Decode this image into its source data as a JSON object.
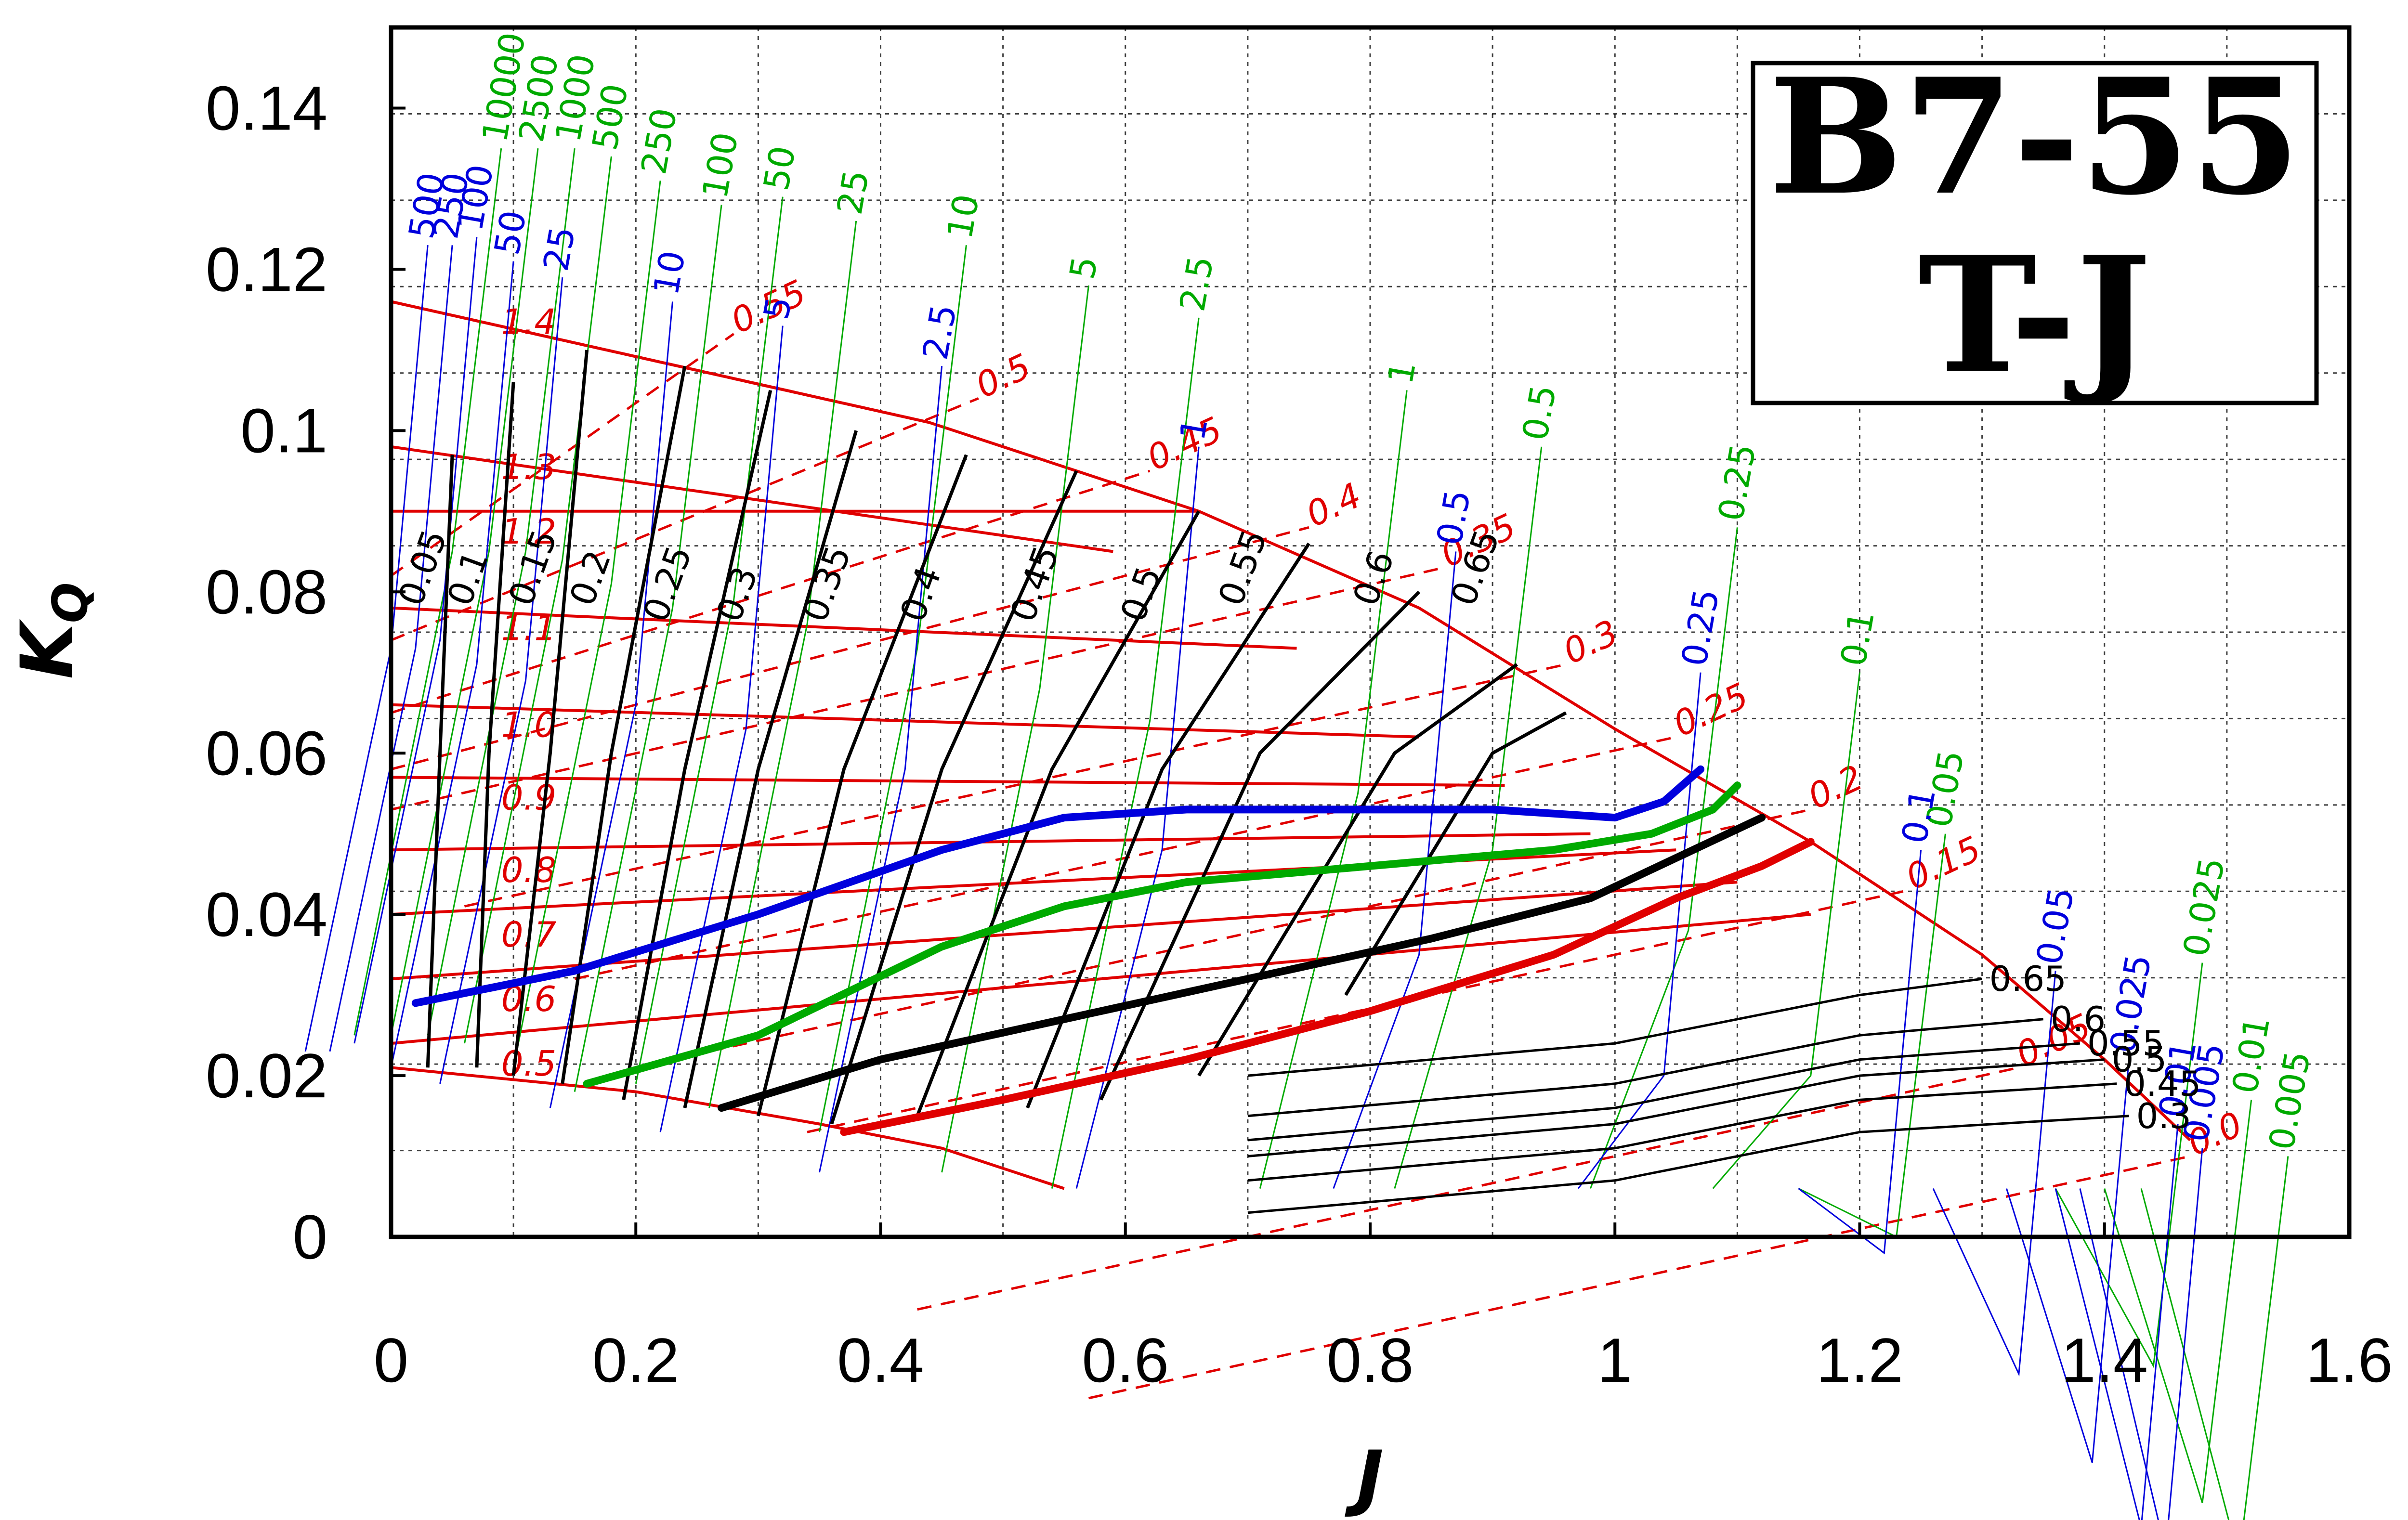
{
  "chart_data": {
    "type": "line",
    "title_lines": [
      "B7-55",
      "T-J"
    ],
    "xlabel": "J",
    "ylabel_main": "K",
    "ylabel_sub": "Q",
    "xlim": [
      0,
      1.6
    ],
    "ylim": [
      0,
      0.15
    ],
    "xticks": [
      "0",
      "0.2",
      "0.4",
      "0.6",
      "0.8",
      "1",
      "1.2",
      "1.4",
      "1.6"
    ],
    "yticks": [
      "0",
      "0.02",
      "0.04",
      "0.06",
      "0.08",
      "0.1",
      "0.12",
      "0.14"
    ],
    "grid": true,
    "colors": {
      "pitch": "#e00000",
      "efficiency": "#000000",
      "green": "#00aa00",
      "blue": "#0000dd"
    },
    "pitch_lines": [
      {
        "label": "1.4",
        "start": [
          0.0,
          0.116
        ],
        "end": [
          0.44,
          0.101
        ]
      },
      {
        "label": "1.3",
        "start": [
          0.0,
          0.098
        ],
        "end": [
          0.59,
          0.085
        ]
      },
      {
        "label": "1.2",
        "start": [
          0.0,
          0.09
        ],
        "end": [
          0.66,
          0.09
        ]
      },
      {
        "label": "1.1",
        "start": [
          0.0,
          0.078
        ],
        "end": [
          0.74,
          0.073
        ]
      },
      {
        "label": "1.0",
        "start": [
          0.0,
          0.066
        ],
        "end": [
          0.84,
          0.062
        ]
      },
      {
        "label": "0.9",
        "start": [
          0.0,
          0.057
        ],
        "end": [
          0.91,
          0.056
        ]
      },
      {
        "label": "0.8",
        "start": [
          0.0,
          0.048
        ],
        "end": [
          0.98,
          0.05
        ]
      },
      {
        "label": "0.7",
        "start": [
          0.0,
          0.04
        ],
        "end": [
          1.05,
          0.048
        ]
      },
      {
        "label": "0.6",
        "start": [
          0.0,
          0.032
        ],
        "end": [
          1.1,
          0.044
        ]
      },
      {
        "label": "0.5",
        "start": [
          0.0,
          0.024
        ],
        "end": [
          1.16,
          0.04
        ]
      }
    ],
    "pitch_dashed_labels": [
      {
        "label": "0.55",
        "at": [
          0.28,
          0.112
        ]
      },
      {
        "label": "0.5",
        "at": [
          0.48,
          0.104
        ]
      },
      {
        "label": "0.45",
        "at": [
          0.62,
          0.095
        ]
      },
      {
        "label": "0.4",
        "at": [
          0.75,
          0.088
        ]
      },
      {
        "label": "0.35",
        "at": [
          0.86,
          0.083
        ]
      },
      {
        "label": "0.3",
        "at": [
          0.96,
          0.071
        ]
      },
      {
        "label": "0.25",
        "at": [
          1.05,
          0.062
        ]
      },
      {
        "label": "0.2",
        "at": [
          1.16,
          0.053
        ]
      },
      {
        "label": "0.15",
        "at": [
          1.24,
          0.043
        ]
      },
      {
        "label": "0.05",
        "at": [
          1.33,
          0.021
        ]
      },
      {
        "label": "0.0",
        "at": [
          1.47,
          0.01
        ]
      }
    ],
    "efficiency_curves": [
      {
        "label": "0.05",
        "points": [
          [
            0.03,
            0.021
          ],
          [
            0.04,
            0.06
          ],
          [
            0.05,
            0.097
          ]
        ]
      },
      {
        "label": "0.1",
        "points": [
          [
            0.07,
            0.021
          ],
          [
            0.08,
            0.06
          ],
          [
            0.1,
            0.106
          ]
        ]
      },
      {
        "label": "0.15",
        "points": [
          [
            0.1,
            0.02
          ],
          [
            0.13,
            0.06
          ],
          [
            0.16,
            0.11
          ]
        ]
      },
      {
        "label": "0.2",
        "points": [
          [
            0.14,
            0.019
          ],
          [
            0.18,
            0.06
          ],
          [
            0.24,
            0.108
          ]
        ]
      },
      {
        "label": "0.25",
        "points": [
          [
            0.19,
            0.017
          ],
          [
            0.24,
            0.058
          ],
          [
            0.31,
            0.105
          ]
        ]
      },
      {
        "label": "0.3",
        "points": [
          [
            0.24,
            0.016
          ],
          [
            0.3,
            0.058
          ],
          [
            0.38,
            0.1
          ]
        ]
      },
      {
        "label": "0.35",
        "points": [
          [
            0.3,
            0.015
          ],
          [
            0.37,
            0.058
          ],
          [
            0.47,
            0.097
          ]
        ]
      },
      {
        "label": "0.4",
        "points": [
          [
            0.36,
            0.014
          ],
          [
            0.45,
            0.058
          ],
          [
            0.56,
            0.095
          ]
        ]
      },
      {
        "label": "0.45",
        "points": [
          [
            0.43,
            0.015
          ],
          [
            0.54,
            0.058
          ],
          [
            0.66,
            0.09
          ]
        ]
      },
      {
        "label": "0.5",
        "points": [
          [
            0.52,
            0.016
          ],
          [
            0.63,
            0.058
          ],
          [
            0.75,
            0.086
          ]
        ]
      },
      {
        "label": "0.55",
        "points": [
          [
            0.58,
            0.017
          ],
          [
            0.71,
            0.06
          ],
          [
            0.84,
            0.08
          ]
        ]
      },
      {
        "label": "0.6",
        "points": [
          [
            0.66,
            0.02
          ],
          [
            0.82,
            0.06
          ],
          [
            0.92,
            0.071
          ]
        ]
      },
      {
        "label": "0.65",
        "points": [
          [
            0.78,
            0.03
          ],
          [
            0.9,
            0.06
          ],
          [
            0.96,
            0.065
          ]
        ]
      }
    ],
    "efficiency_right_labels": [
      {
        "label": "0.65",
        "at": [
          1.3,
          0.032
        ]
      },
      {
        "label": "0.6",
        "at": [
          1.35,
          0.027
        ]
      },
      {
        "label": "0.55",
        "at": [
          1.38,
          0.024
        ]
      },
      {
        "label": "0.5",
        "at": [
          1.4,
          0.022
        ]
      },
      {
        "label": "0.45",
        "at": [
          1.41,
          0.019
        ]
      },
      {
        "label": "0.3",
        "at": [
          1.42,
          0.015
        ]
      }
    ],
    "green_curves": [
      {
        "label": "10000",
        "top": [
          0.09,
          0.135
        ]
      },
      {
        "label": "2500",
        "top": [
          0.12,
          0.135
        ]
      },
      {
        "label": "1000",
        "top": [
          0.15,
          0.135
        ]
      },
      {
        "label": "500",
        "top": [
          0.18,
          0.134
        ]
      },
      {
        "label": "250",
        "top": [
          0.22,
          0.131
        ]
      },
      {
        "label": "100",
        "top": [
          0.27,
          0.128
        ]
      },
      {
        "label": "50",
        "top": [
          0.32,
          0.129
        ]
      },
      {
        "label": "25",
        "top": [
          0.38,
          0.126
        ]
      },
      {
        "label": "10",
        "top": [
          0.47,
          0.123
        ]
      },
      {
        "label": "5",
        "top": [
          0.57,
          0.118
        ]
      },
      {
        "label": "2.5",
        "top": [
          0.66,
          0.114
        ]
      },
      {
        "label": "1",
        "top": [
          0.83,
          0.105
        ]
      },
      {
        "label": "0.5",
        "top": [
          0.94,
          0.098
        ]
      },
      {
        "label": "0.25",
        "top": [
          1.1,
          0.088
        ]
      },
      {
        "label": "0.1",
        "top": [
          1.2,
          0.07
        ]
      },
      {
        "label": "0.05",
        "top": [
          1.27,
          0.05
        ]
      },
      {
        "label": "0.025",
        "top": [
          1.48,
          0.034
        ]
      },
      {
        "label": "0.01",
        "top": [
          1.52,
          0.017
        ]
      },
      {
        "label": "0.005",
        "top": [
          1.55,
          0.01
        ]
      }
    ],
    "blue_curves": [
      {
        "label": "500",
        "top": [
          0.03,
          0.123
        ]
      },
      {
        "label": "250",
        "top": [
          0.05,
          0.123
        ]
      },
      {
        "label": "100",
        "top": [
          0.07,
          0.124
        ]
      },
      {
        "label": "50",
        "top": [
          0.1,
          0.121
        ]
      },
      {
        "label": "25",
        "top": [
          0.14,
          0.119
        ]
      },
      {
        "label": "10",
        "top": [
          0.23,
          0.116
        ]
      },
      {
        "label": "5",
        "top": [
          0.32,
          0.113
        ]
      },
      {
        "label": "2.5",
        "top": [
          0.45,
          0.108
        ]
      },
      {
        "label": "1",
        "top": [
          0.66,
          0.098
        ]
      },
      {
        "label": "0.5",
        "top": [
          0.87,
          0.085
        ]
      },
      {
        "label": "0.25",
        "top": [
          1.07,
          0.07
        ]
      },
      {
        "label": "0.1",
        "top": [
          1.25,
          0.048
        ]
      },
      {
        "label": "0.05",
        "top": [
          1.36,
          0.033
        ]
      },
      {
        "label": "0.025",
        "top": [
          1.42,
          0.022
        ]
      },
      {
        "label": "0.01",
        "top": [
          1.46,
          0.014
        ]
      },
      {
        "label": "0.005",
        "top": [
          1.48,
          0.011
        ]
      }
    ],
    "thick_curves": [
      {
        "color": "blue",
        "points": [
          [
            0.02,
            0.029
          ],
          [
            0.15,
            0.033
          ],
          [
            0.3,
            0.04
          ],
          [
            0.45,
            0.048
          ],
          [
            0.55,
            0.052
          ],
          [
            0.65,
            0.053
          ],
          [
            0.8,
            0.053
          ],
          [
            0.9,
            0.053
          ],
          [
            1.0,
            0.052
          ],
          [
            1.04,
            0.054
          ],
          [
            1.07,
            0.058
          ]
        ]
      },
      {
        "color": "green",
        "points": [
          [
            0.16,
            0.019
          ],
          [
            0.3,
            0.025
          ],
          [
            0.45,
            0.036
          ],
          [
            0.55,
            0.041
          ],
          [
            0.65,
            0.044
          ],
          [
            0.8,
            0.046
          ],
          [
            0.95,
            0.048
          ],
          [
            1.03,
            0.05
          ],
          [
            1.08,
            0.053
          ],
          [
            1.1,
            0.056
          ]
        ]
      },
      {
        "color": "black",
        "points": [
          [
            0.27,
            0.016
          ],
          [
            0.4,
            0.022
          ],
          [
            0.55,
            0.027
          ],
          [
            0.7,
            0.032
          ],
          [
            0.85,
            0.037
          ],
          [
            0.98,
            0.042
          ],
          [
            1.05,
            0.047
          ],
          [
            1.12,
            0.052
          ]
        ]
      },
      {
        "color": "red",
        "points": [
          [
            0.37,
            0.013
          ],
          [
            0.5,
            0.017
          ],
          [
            0.65,
            0.022
          ],
          [
            0.8,
            0.028
          ],
          [
            0.95,
            0.035
          ],
          [
            1.05,
            0.042
          ],
          [
            1.12,
            0.046
          ],
          [
            1.16,
            0.049
          ]
        ]
      }
    ]
  }
}
